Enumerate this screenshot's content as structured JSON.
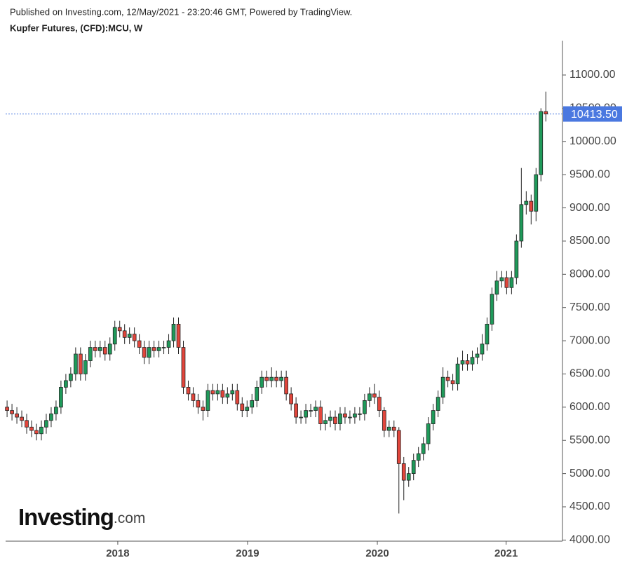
{
  "header": {
    "published": "Published on Investing.com, 12/May/2021 - 23:20:46 GMT, Powered by TradingView.",
    "symbol": "Kupfer Futures, (CFD):MCU, W"
  },
  "logo": {
    "name": "Investing",
    "suffix": ".com"
  },
  "chart_data": {
    "type": "candlestick",
    "categories": [
      null,
      null,
      null,
      null,
      null,
      null,
      null,
      null,
      null,
      null,
      null,
      null,
      null,
      null,
      null,
      null,
      null,
      null,
      null,
      null,
      null,
      null,
      null,
      null,
      null,
      null,
      null,
      null,
      null,
      null,
      null,
      null,
      null,
      null,
      null,
      null,
      null,
      null,
      null,
      null,
      null,
      null,
      null,
      null,
      null,
      null,
      null,
      null,
      null,
      null,
      null,
      null,
      null,
      null,
      null,
      null,
      null,
      null,
      null,
      null,
      null,
      null,
      null,
      null,
      null,
      null,
      null,
      null,
      null,
      null,
      null,
      null,
      null,
      null,
      null,
      null,
      null,
      null,
      null,
      null,
      null,
      null,
      null,
      null,
      null,
      null,
      null,
      null,
      null,
      null,
      null,
      null,
      null,
      null,
      null,
      null,
      null,
      null,
      null,
      null,
      null,
      null,
      null,
      null,
      null,
      null,
      null,
      null,
      null,
      null,
      null
    ],
    "open": [
      6000,
      5950,
      5900,
      5850,
      5800,
      5700,
      5650,
      5600,
      5700,
      5800,
      5900,
      6000,
      6300,
      6400,
      6500,
      6800,
      6500,
      6700,
      6900,
      6850,
      6900,
      6800,
      6950,
      7200,
      7150,
      7050,
      7100,
      7000,
      6900,
      6750,
      6900,
      6850,
      6900,
      6900,
      7000,
      7250,
      6900,
      6300,
      6200,
      6100,
      6000,
      5950,
      6250,
      6200,
      6250,
      6150,
      6200,
      6250,
      6050,
      5950,
      6000,
      6100,
      6300,
      6450,
      6400,
      6450,
      6400,
      6450,
      6200,
      6050,
      5850,
      5850,
      5950,
      5950,
      6000,
      5750,
      5800,
      5850,
      5750,
      5900,
      5850,
      5850,
      5900,
      5900,
      6100,
      6200,
      6150,
      5950,
      5650,
      5700,
      5650,
      5150,
      4900,
      5000,
      5200,
      5300,
      5450,
      5750,
      5950,
      6150,
      6450,
      6400,
      6350,
      6650,
      6700,
      6650,
      6750,
      6800,
      6950,
      7250,
      7700,
      7900,
      7950,
      7800,
      7950,
      8500,
      9050,
      9100,
      8950,
      9500,
      10450
    ],
    "high": [
      6100,
      6050,
      6000,
      5950,
      5900,
      5800,
      5750,
      5800,
      5900,
      6000,
      6100,
      6400,
      6500,
      6600,
      6900,
      6900,
      6800,
      7000,
      7000,
      7000,
      7000,
      7050,
      7300,
      7300,
      7250,
      7200,
      7200,
      7100,
      7000,
      7000,
      7000,
      7000,
      7000,
      7100,
      7350,
      7350,
      7000,
      6400,
      6300,
      6200,
      6100,
      6350,
      6350,
      6350,
      6350,
      6300,
      6350,
      6350,
      6150,
      6100,
      6200,
      6400,
      6550,
      6550,
      6600,
      6550,
      6550,
      6550,
      6300,
      6150,
      5950,
      6050,
      6050,
      6100,
      6100,
      5900,
      5950,
      5950,
      6000,
      6000,
      5950,
      6000,
      6000,
      6200,
      6300,
      6350,
      6250,
      6000,
      5800,
      5800,
      5700,
      5250,
      5100,
      5300,
      5400,
      5550,
      5850,
      6050,
      6250,
      6600,
      6550,
      6500,
      6750,
      6850,
      6800,
      6850,
      6900,
      7100,
      7350,
      7800,
      8050,
      8050,
      8050,
      8050,
      8600,
      9600,
      9250,
      9200,
      9600,
      10500,
      10750
    ],
    "low": [
      5850,
      5800,
      5750,
      5700,
      5600,
      5550,
      5500,
      5500,
      5600,
      5700,
      5800,
      5900,
      6200,
      6300,
      6400,
      6400,
      6400,
      6600,
      6750,
      6750,
      6700,
      6700,
      6850,
      7050,
      6950,
      6950,
      6900,
      6800,
      6650,
      6650,
      6750,
      6750,
      6800,
      6800,
      6900,
      6800,
      6200,
      6100,
      6000,
      5900,
      5800,
      5850,
      6100,
      6100,
      6050,
      6050,
      6100,
      5950,
      5850,
      5850,
      5900,
      6000,
      6200,
      6300,
      6300,
      6300,
      6300,
      6100,
      5950,
      5750,
      5750,
      5750,
      5850,
      5850,
      5650,
      5650,
      5700,
      5650,
      5650,
      5750,
      5750,
      5750,
      5800,
      5800,
      6000,
      6050,
      5850,
      5550,
      5550,
      5550,
      4400,
      4600,
      4800,
      4900,
      5100,
      5200,
      5350,
      5650,
      5850,
      6050,
      6300,
      6250,
      6250,
      6550,
      6550,
      6550,
      6650,
      6700,
      6850,
      7150,
      7600,
      7800,
      7700,
      7700,
      7850,
      8400,
      8900,
      8750,
      8800,
      9400,
      10300
    ],
    "close": [
      5950,
      5900,
      5850,
      5800,
      5700,
      5650,
      5600,
      5700,
      5800,
      5900,
      6000,
      6300,
      6400,
      6500,
      6800,
      6500,
      6700,
      6900,
      6850,
      6900,
      6800,
      6950,
      7200,
      7150,
      7050,
      7100,
      7000,
      6900,
      6750,
      6900,
      6850,
      6900,
      6900,
      7000,
      7250,
      6900,
      6300,
      6200,
      6100,
      6000,
      5950,
      6250,
      6200,
      6250,
      6150,
      6200,
      6250,
      6050,
      5950,
      6000,
      6100,
      6300,
      6450,
      6400,
      6450,
      6400,
      6450,
      6200,
      6050,
      5850,
      5850,
      5950,
      5950,
      6000,
      5750,
      5800,
      5850,
      5750,
      5900,
      5850,
      5850,
      5900,
      5900,
      6100,
      6200,
      6150,
      5950,
      5650,
      5700,
      5650,
      5150,
      4900,
      5000,
      5200,
      5300,
      5450,
      5750,
      5950,
      6150,
      6450,
      6400,
      6350,
      6650,
      6700,
      6650,
      6750,
      6800,
      6950,
      7250,
      7700,
      7900,
      7950,
      7800,
      7950,
      8500,
      9050,
      9100,
      8950,
      9500,
      10450,
      10413.5
    ],
    "up_color": "#1f9a5a",
    "down_color": "#e2463c",
    "xlim": [
      -0.3,
      113.4
    ],
    "xticks": [
      {
        "value": 22.6,
        "label": "2018"
      },
      {
        "value": 49.1,
        "label": "2019"
      },
      {
        "value": 75.6,
        "label": "2020"
      },
      {
        "value": 101.9,
        "label": "2021"
      }
    ],
    "ylim": [
      3983,
      11517
    ],
    "yticks": [
      {
        "value": 4000,
        "label": "4000.00"
      },
      {
        "value": 4500,
        "label": "4500.00"
      },
      {
        "value": 5000,
        "label": "5000.00"
      },
      {
        "value": 5500,
        "label": "5500.00"
      },
      {
        "value": 6000,
        "label": "6000.00"
      },
      {
        "value": 6500,
        "label": "6500.00"
      },
      {
        "value": 7000,
        "label": "7000.00"
      },
      {
        "value": 7500,
        "label": "7500.00"
      },
      {
        "value": 8000,
        "label": "8000.00"
      },
      {
        "value": 8500,
        "label": "8500.00"
      },
      {
        "value": 9000,
        "label": "9000.00"
      },
      {
        "value": 9500,
        "label": "9500.00"
      },
      {
        "value": 10000,
        "label": "10000.00"
      },
      {
        "value": 10500,
        "label": "10500.00"
      },
      {
        "value": 11000,
        "label": "11000.00"
      }
    ],
    "last_price": {
      "value": 10413.5,
      "label": "10413.50",
      "color": "#4a78e0"
    },
    "grid": false
  }
}
